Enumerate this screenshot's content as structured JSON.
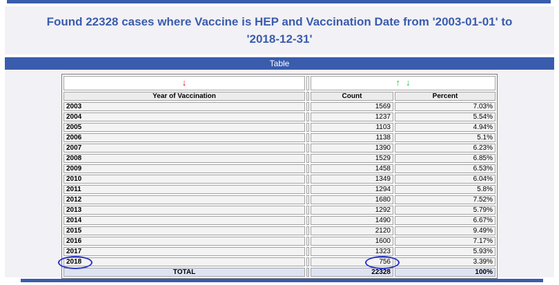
{
  "page": {
    "title_line1": "Found 22328 cases where Vaccine is HEP and Vaccination Date from '2003-01-01' to",
    "title_line2": "'2018-12-31'"
  },
  "section_bar": {
    "label": "Table"
  },
  "colors": {
    "accent_blue": "#3a5cad",
    "sort_red": "#e80000",
    "sort_green": "#00cc33",
    "total_row_bg": "#dee3f4",
    "annotation_circle_blue": "#2a35c5"
  },
  "sort_controls": {
    "year_column_icon": "sort-descending-icon",
    "year_column_glyph": "↓",
    "data_columns_up_icon": "sort-ascending-icon",
    "data_columns_up_glyph": "↑",
    "data_columns_down_icon": "sort-descending-icon",
    "data_columns_down_glyph": "↓"
  },
  "table": {
    "columns": [
      "Year of Vaccination",
      "Count",
      "Percent"
    ],
    "rows": [
      {
        "year": "2003",
        "count": "1569",
        "percent": "7.03%"
      },
      {
        "year": "2004",
        "count": "1237",
        "percent": "5.54%"
      },
      {
        "year": "2005",
        "count": "1103",
        "percent": "4.94%"
      },
      {
        "year": "2006",
        "count": "1138",
        "percent": "5.1%"
      },
      {
        "year": "2007",
        "count": "1390",
        "percent": "6.23%"
      },
      {
        "year": "2008",
        "count": "1529",
        "percent": "6.85%"
      },
      {
        "year": "2009",
        "count": "1458",
        "percent": "6.53%"
      },
      {
        "year": "2010",
        "count": "1349",
        "percent": "6.04%"
      },
      {
        "year": "2011",
        "count": "1294",
        "percent": "5.8%"
      },
      {
        "year": "2012",
        "count": "1680",
        "percent": "7.52%"
      },
      {
        "year": "2013",
        "count": "1292",
        "percent": "5.79%"
      },
      {
        "year": "2014",
        "count": "1490",
        "percent": "6.67%"
      },
      {
        "year": "2015",
        "count": "2120",
        "percent": "9.49%"
      },
      {
        "year": "2016",
        "count": "1600",
        "percent": "7.17%"
      },
      {
        "year": "2017",
        "count": "1323",
        "percent": "5.93%"
      },
      {
        "year": "2018",
        "count": "756",
        "percent": "3.39%"
      }
    ],
    "total": {
      "label": "TOTAL",
      "count": "22328",
      "percent": "100%"
    },
    "annotations": {
      "circled_year": "2018",
      "circled_count": "756"
    }
  }
}
